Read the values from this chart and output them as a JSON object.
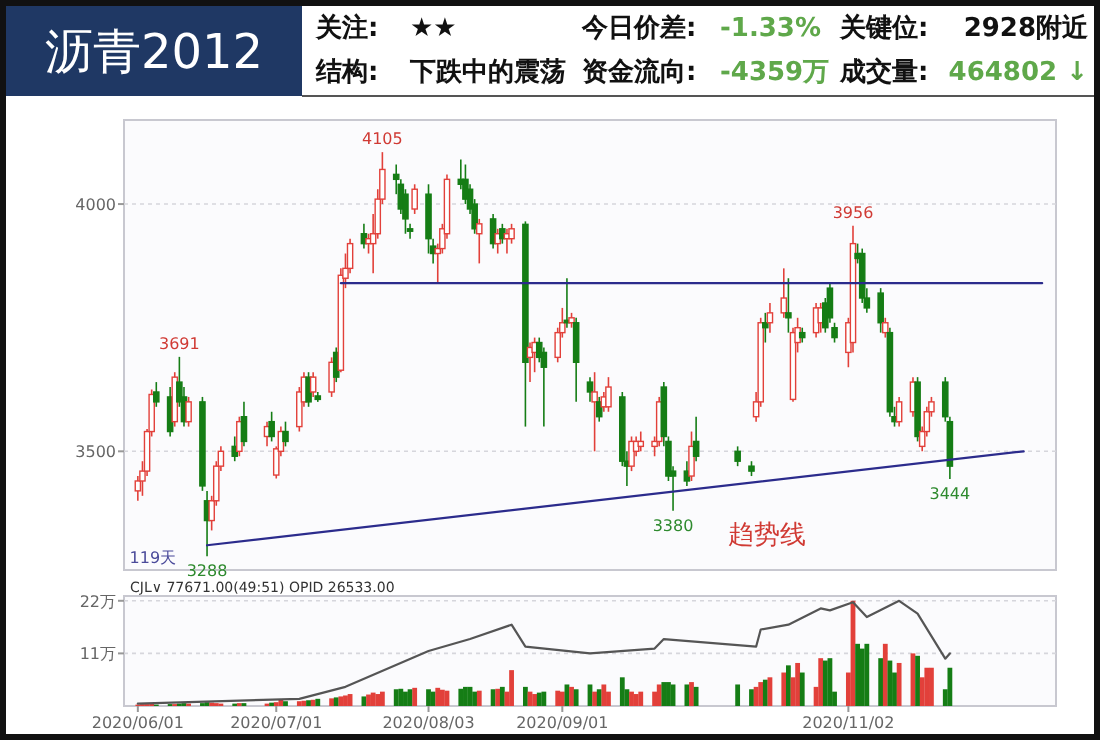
{
  "chart_data": [
    {
      "type": "other",
      "title": "沥青2012",
      "annotations": [
        "关注:",
        "★★",
        "今日价差:",
        "-1.33%",
        "关键位:",
        "2928附近",
        "结构:",
        "下跌中的震荡",
        "资金流向:",
        "-4359万",
        "成交量:",
        "464802 ↓"
      ]
    },
    {
      "type": "candlestick",
      "x": [
        "2020-06-01",
        "2020-06-02",
        "2020-06-03",
        "2020-06-04",
        "2020-06-05",
        "2020-06-08",
        "2020-06-09",
        "2020-06-10",
        "2020-06-11",
        "2020-06-12",
        "2020-06-15",
        "2020-06-16",
        "2020-06-17",
        "2020-06-18",
        "2020-06-19",
        "2020-06-22",
        "2020-06-23",
        "2020-06-24",
        "2020-06-29",
        "2020-06-30",
        "2020-07-01",
        "2020-07-02",
        "2020-07-03",
        "2020-07-06",
        "2020-07-07",
        "2020-07-08",
        "2020-07-09",
        "2020-07-10",
        "2020-07-13",
        "2020-07-14",
        "2020-07-15",
        "2020-07-16",
        "2020-07-17",
        "2020-07-20",
        "2020-07-21",
        "2020-07-22",
        "2020-07-23",
        "2020-07-24",
        "2020-07-27",
        "2020-07-28",
        "2020-07-29",
        "2020-07-30",
        "2020-07-31",
        "2020-08-03",
        "2020-08-04",
        "2020-08-05",
        "2020-08-06",
        "2020-08-07",
        "2020-08-10",
        "2020-08-11",
        "2020-08-12",
        "2020-08-13",
        "2020-08-14",
        "2020-08-17",
        "2020-08-18",
        "2020-08-19",
        "2020-08-20",
        "2020-08-21",
        "2020-08-24",
        "2020-08-25",
        "2020-08-26",
        "2020-08-27",
        "2020-08-28",
        "2020-08-31",
        "2020-09-01",
        "2020-09-02",
        "2020-09-03",
        "2020-09-04",
        "2020-09-07",
        "2020-09-08",
        "2020-09-09",
        "2020-09-10",
        "2020-09-11",
        "2020-09-14",
        "2020-09-15",
        "2020-09-16",
        "2020-09-17",
        "2020-09-18",
        "2020-09-21",
        "2020-09-22",
        "2020-09-23",
        "2020-09-24",
        "2020-09-25",
        "2020-09-28",
        "2020-09-29",
        "2020-09-30",
        "2020-10-09",
        "2020-10-12",
        "2020-10-13",
        "2020-10-14",
        "2020-10-15",
        "2020-10-16",
        "2020-10-19",
        "2020-10-20",
        "2020-10-21",
        "2020-10-22",
        "2020-10-23",
        "2020-10-26",
        "2020-10-27",
        "2020-10-28",
        "2020-10-29",
        "2020-10-30",
        "2020-11-02",
        "2020-11-03",
        "2020-11-04",
        "2020-11-05",
        "2020-11-06",
        "2020-11-09",
        "2020-11-10",
        "2020-11-11",
        "2020-11-12",
        "2020-11-13",
        "2020-11-16",
        "2020-11-17",
        "2020-11-18",
        "2020-11-19",
        "2020-11-20",
        "2020-11-23",
        "2020-11-24"
      ],
      "ohlc": [
        [
          3420,
          3450,
          3400,
          3440
        ],
        [
          3440,
          3480,
          3410,
          3460
        ],
        [
          3460,
          3545,
          3450,
          3540
        ],
        [
          3540,
          3625,
          3530,
          3615
        ],
        [
          3620,
          3640,
          3590,
          3600
        ],
        [
          3610,
          3630,
          3530,
          3540
        ],
        [
          3560,
          3660,
          3550,
          3650
        ],
        [
          3640,
          3691,
          3590,
          3600
        ],
        [
          3610,
          3630,
          3550,
          3560
        ],
        [
          3560,
          3610,
          3550,
          3600
        ],
        [
          3600,
          3610,
          3420,
          3430
        ],
        [
          3400,
          3420,
          3288,
          3360
        ],
        [
          3360,
          3410,
          3340,
          3400
        ],
        [
          3400,
          3480,
          3390,
          3470
        ],
        [
          3470,
          3510,
          3460,
          3500
        ],
        [
          3510,
          3530,
          3480,
          3490
        ],
        [
          3500,
          3570,
          3490,
          3560
        ],
        [
          3570,
          3600,
          3510,
          3520
        ],
        [
          3530,
          3560,
          3510,
          3550
        ],
        [
          3560,
          3580,
          3520,
          3530
        ],
        [
          3452,
          3510,
          3445,
          3505
        ],
        [
          3500,
          3550,
          3490,
          3540
        ],
        [
          3540,
          3560,
          3510,
          3520
        ],
        [
          3550,
          3630,
          3540,
          3620
        ],
        [
          3600,
          3660,
          3590,
          3650
        ],
        [
          3650,
          3660,
          3590,
          3600
        ],
        [
          3620,
          3660,
          3610,
          3650
        ],
        [
          3612,
          3620,
          3600,
          3605
        ],
        [
          3620,
          3690,
          3610,
          3680
        ],
        [
          3700,
          3710,
          3640,
          3650
        ],
        [
          3664,
          3870,
          3660,
          3856
        ],
        [
          3850,
          3900,
          3830,
          3870
        ],
        [
          3870,
          3930,
          3860,
          3920
        ],
        [
          3940,
          3960,
          3910,
          3920
        ],
        [
          3920,
          3940,
          3900,
          3930
        ],
        [
          3920,
          3980,
          3860,
          3940
        ],
        [
          3940,
          4030,
          3930,
          4010
        ],
        [
          4010,
          4105,
          4000,
          4070
        ],
        [
          4060,
          4080,
          4020,
          4050
        ],
        [
          4040,
          4050,
          3980,
          3990
        ],
        [
          4020,
          4030,
          3940,
          3970
        ],
        [
          3950,
          3960,
          3930,
          3945
        ],
        [
          3990,
          4040,
          3980,
          4030
        ],
        [
          4020,
          4040,
          3900,
          3930
        ],
        [
          3915,
          3930,
          3880,
          3900
        ],
        [
          3900,
          3920,
          3840,
          3910
        ],
        [
          3910,
          3960,
          3900,
          3950
        ],
        [
          3940,
          4060,
          3930,
          4050
        ],
        [
          4050,
          4090,
          4030,
          4040
        ],
        [
          4050,
          4080,
          4000,
          4010
        ],
        [
          4030,
          4040,
          3980,
          3990
        ],
        [
          4000,
          4010,
          3940,
          3950
        ],
        [
          3940,
          3970,
          3880,
          3960
        ],
        [
          3970,
          3980,
          3910,
          3920
        ],
        [
          3920,
          3950,
          3900,
          3940
        ],
        [
          3950,
          3960,
          3920,
          3930
        ],
        [
          3930,
          3950,
          3900,
          3940
        ],
        [
          3930,
          3960,
          3920,
          3950
        ],
        [
          3959,
          3965,
          3550,
          3680
        ],
        [
          3690,
          3720,
          3640,
          3710
        ],
        [
          3700,
          3730,
          3660,
          3720
        ],
        [
          3720,
          3730,
          3680,
          3690
        ],
        [
          3700,
          3710,
          3550,
          3670
        ],
        [
          3690,
          3750,
          3680,
          3740
        ],
        [
          3740,
          3790,
          3730,
          3760
        ],
        [
          3765,
          3850,
          3750,
          3760
        ],
        [
          3760,
          3780,
          3750,
          3770
        ],
        [
          3760,
          3770,
          3600,
          3680
        ],
        [
          3640,
          3650,
          3600,
          3620
        ],
        [
          3600,
          3660,
          3500,
          3620
        ],
        [
          3600,
          3610,
          3560,
          3570
        ],
        [
          3590,
          3620,
          3580,
          3610
        ],
        [
          3590,
          3650,
          3580,
          3630
        ],
        [
          3610,
          3620,
          3470,
          3480
        ],
        [
          3480,
          3500,
          3430,
          3470
        ],
        [
          3470,
          3530,
          3460,
          3520
        ],
        [
          3500,
          3530,
          3490,
          3520
        ],
        [
          3510,
          3540,
          3500,
          3520
        ],
        [
          3510,
          3530,
          3490,
          3520
        ],
        [
          3520,
          3610,
          3510,
          3600
        ],
        [
          3630,
          3640,
          3510,
          3530
        ],
        [
          3520,
          3530,
          3440,
          3450
        ],
        [
          3460,
          3470,
          3380,
          3450
        ],
        [
          3460,
          3480,
          3430,
          3440
        ],
        [
          3450,
          3540,
          3440,
          3510
        ],
        [
          3520,
          3570,
          3480,
          3490
        ],
        [
          3500,
          3510,
          3470,
          3480
        ],
        [
          3470,
          3480,
          3450,
          3460
        ],
        [
          3570,
          3620,
          3560,
          3600
        ],
        [
          3600,
          3770,
          3590,
          3760
        ],
        [
          3760,
          3780,
          3720,
          3750
        ],
        [
          3760,
          3800,
          3740,
          3780
        ],
        [
          3780,
          3870,
          3770,
          3810
        ],
        [
          3780,
          3850,
          3740,
          3770
        ],
        [
          3605,
          3750,
          3600,
          3740
        ],
        [
          3720,
          3770,
          3700,
          3750
        ],
        [
          3740,
          3750,
          3720,
          3730
        ],
        [
          3740,
          3800,
          3730,
          3790
        ],
        [
          3760,
          3800,
          3740,
          3790
        ],
        [
          3800,
          3810,
          3740,
          3750
        ],
        [
          3830,
          3840,
          3760,
          3770
        ],
        [
          3750,
          3760,
          3720,
          3730
        ],
        [
          3700,
          3770,
          3670,
          3760
        ],
        [
          3720,
          3956,
          3700,
          3920
        ],
        [
          3900,
          3920,
          3880,
          3890
        ],
        [
          3900,
          3910,
          3800,
          3810
        ],
        [
          3810,
          3830,
          3780,
          3790
        ],
        [
          3820,
          3830,
          3740,
          3760
        ],
        [
          3740,
          3770,
          3730,
          3760
        ],
        [
          3740,
          3750,
          3570,
          3580
        ],
        [
          3570,
          3590,
          3550,
          3560
        ],
        [
          3560,
          3610,
          3550,
          3600
        ],
        [
          3580,
          3650,
          3570,
          3640
        ],
        [
          3640,
          3650,
          3520,
          3530
        ],
        [
          3510,
          3550,
          3500,
          3540
        ],
        [
          3540,
          3590,
          3530,
          3580
        ],
        [
          3580,
          3610,
          3570,
          3600
        ],
        [
          3640,
          3650,
          3560,
          3570
        ],
        [
          3560,
          3570,
          3444,
          3470
        ]
      ],
      "colors": [
        "#e2403a",
        "#e2403a",
        "#e2403a",
        "#e2403a",
        "#157d15",
        "#157d15",
        "#e2403a",
        "#157d15",
        "#157d15",
        "#e2403a",
        "#157d15",
        "#157d15",
        "#e2403a",
        "#e2403a",
        "#e2403a",
        "#157d15",
        "#e2403a",
        "#157d15",
        "#e2403a",
        "#157d15",
        "#e2403a",
        "#e2403a",
        "#157d15",
        "#e2403a",
        "#e2403a",
        "#157d15",
        "#e2403a",
        "#157d15",
        "#e2403a",
        "#157d15",
        "#e2403a",
        "#e2403a",
        "#e2403a",
        "#157d15",
        "#e2403a",
        "#e2403a",
        "#e2403a",
        "#e2403a",
        "#157d15",
        "#157d15",
        "#157d15",
        "#157d15",
        "#e2403a",
        "#157d15",
        "#157d15",
        "#e2403a",
        "#e2403a",
        "#e2403a",
        "#157d15",
        "#157d15",
        "#157d15",
        "#157d15",
        "#e2403a",
        "#157d15",
        "#e2403a",
        "#157d15",
        "#e2403a",
        "#e2403a",
        "#157d15",
        "#e2403a",
        "#e2403a",
        "#157d15",
        "#157d15",
        "#e2403a",
        "#e2403a",
        "#157d15",
        "#e2403a",
        "#157d15",
        "#157d15",
        "#e2403a",
        "#157d15",
        "#e2403a",
        "#e2403a",
        "#157d15",
        "#157d15",
        "#e2403a",
        "#e2403a",
        "#e2403a",
        "#e2403a",
        "#e2403a",
        "#157d15",
        "#157d15",
        "#157d15",
        "#157d15",
        "#e2403a",
        "#157d15",
        "#157d15",
        "#157d15",
        "#e2403a",
        "#e2403a",
        "#157d15",
        "#e2403a",
        "#e2403a",
        "#157d15",
        "#e2403a",
        "#e2403a",
        "#157d15",
        "#e2403a",
        "#e2403a",
        "#157d15",
        "#157d15",
        "#157d15",
        "#e2403a",
        "#e2403a",
        "#157d15",
        "#157d15",
        "#157d15",
        "#157d15",
        "#e2403a",
        "#157d15",
        "#157d15",
        "#e2403a",
        "#e2403a",
        "#157d15",
        "#e2403a",
        "#e2403a",
        "#e2403a",
        "#157d15",
        "#157d15"
      ],
      "series": [
        {
          "type": "line",
          "x": [
            "2020-07-15",
            "2020-12-14"
          ],
          "values": [
            3840,
            3840
          ],
          "color": "#2b2b8c"
        },
        {
          "type": "line",
          "x": [
            "2020-06-16",
            "2020-12-10"
          ],
          "values": [
            3310,
            3500
          ],
          "color": "#2b2b8c"
        }
      ],
      "annotations": [
        {
          "text": "3691",
          "x": "2020-06-10",
          "y": 3691
        },
        {
          "text": "3288",
          "x": "2020-06-16",
          "y": 3288
        },
        {
          "text": "4105",
          "x": "2020-07-24",
          "y": 4105
        },
        {
          "text": "3380",
          "x": "2020-09-25",
          "y": 3380
        },
        {
          "text": "3956",
          "x": "2020-11-03",
          "y": 3956
        },
        {
          "text": "3444",
          "x": "2020-11-24",
          "y": 3444
        },
        "趋势线",
        "119天"
      ],
      "xlim": [
        "2020-05-29",
        "2020-12-17"
      ],
      "ylim": [
        3260,
        4170
      ],
      "yticks": [
        3500,
        4000
      ],
      "grid": "y",
      "tick_labels": "y"
    },
    {
      "type": "bar",
      "x": [
        "2020-06-01",
        "2020-06-02",
        "2020-06-03",
        "2020-06-04",
        "2020-06-05",
        "2020-06-08",
        "2020-06-09",
        "2020-06-10",
        "2020-06-11",
        "2020-06-12",
        "2020-06-15",
        "2020-06-16",
        "2020-06-17",
        "2020-06-18",
        "2020-06-19",
        "2020-06-22",
        "2020-06-23",
        "2020-06-24",
        "2020-06-29",
        "2020-06-30",
        "2020-07-01",
        "2020-07-02",
        "2020-07-03",
        "2020-07-06",
        "2020-07-07",
        "2020-07-08",
        "2020-07-09",
        "2020-07-10",
        "2020-07-13",
        "2020-07-14",
        "2020-07-15",
        "2020-07-16",
        "2020-07-17",
        "2020-07-20",
        "2020-07-21",
        "2020-07-22",
        "2020-07-23",
        "2020-07-24",
        "2020-07-27",
        "2020-07-28",
        "2020-07-29",
        "2020-07-30",
        "2020-07-31",
        "2020-08-03",
        "2020-08-04",
        "2020-08-05",
        "2020-08-06",
        "2020-08-07",
        "2020-08-10",
        "2020-08-11",
        "2020-08-12",
        "2020-08-13",
        "2020-08-14",
        "2020-08-17",
        "2020-08-18",
        "2020-08-19",
        "2020-08-20",
        "2020-08-21",
        "2020-08-24",
        "2020-08-25",
        "2020-08-26",
        "2020-08-27",
        "2020-08-28",
        "2020-08-31",
        "2020-09-01",
        "2020-09-02",
        "2020-09-03",
        "2020-09-04",
        "2020-09-07",
        "2020-09-08",
        "2020-09-09",
        "2020-09-10",
        "2020-09-11",
        "2020-09-14",
        "2020-09-15",
        "2020-09-16",
        "2020-09-17",
        "2020-09-18",
        "2020-09-21",
        "2020-09-22",
        "2020-09-23",
        "2020-09-24",
        "2020-09-25",
        "2020-09-28",
        "2020-09-29",
        "2020-09-30",
        "2020-10-09",
        "2020-10-12",
        "2020-10-13",
        "2020-10-14",
        "2020-10-15",
        "2020-10-16",
        "2020-10-19",
        "2020-10-20",
        "2020-10-21",
        "2020-10-22",
        "2020-10-23",
        "2020-10-26",
        "2020-10-27",
        "2020-10-28",
        "2020-10-29",
        "2020-10-30",
        "2020-11-02",
        "2020-11-03",
        "2020-11-04",
        "2020-11-05",
        "2020-11-06",
        "2020-11-09",
        "2020-11-10",
        "2020-11-11",
        "2020-11-12",
        "2020-11-13",
        "2020-11-16",
        "2020-11-17",
        "2020-11-18",
        "2020-11-19",
        "2020-11-20",
        "2020-11-23",
        "2020-11-24"
      ],
      "series": [
        {
          "type": "bar",
          "values": [
            0.3,
            0.4,
            0.4,
            0.5,
            0.3,
            0.4,
            0.4,
            0.5,
            0.6,
            0.5,
            0.6,
            0.8,
            0.7,
            0.6,
            0.5,
            0.5,
            0.6,
            0.6,
            0.5,
            0.7,
            0.8,
            1.4,
            1.0,
            1.0,
            1.1,
            1.2,
            1.3,
            1.5,
            1.6,
            1.8,
            2.0,
            2.2,
            2.5,
            2.0,
            2.4,
            2.8,
            2.5,
            3.0,
            3.5,
            3.6,
            3.0,
            3.5,
            3.8,
            3.5,
            3.0,
            3.8,
            3.4,
            3.2,
            3.6,
            4.0,
            4.0,
            3.0,
            3.2,
            3.5,
            3.6,
            4.0,
            3.0,
            7.5,
            4.0,
            3.0,
            2.5,
            2.8,
            3.0,
            3.2,
            3.0,
            4.5,
            4.0,
            3.5,
            4.5,
            3.0,
            3.5,
            4.5,
            3.0,
            6.0,
            3.5,
            3.0,
            2.5,
            3.0,
            3.0,
            4.5,
            5.0,
            5.0,
            4.5,
            4.5,
            5.0,
            4.0,
            4.5,
            3.5,
            4.0,
            5.0,
            5.5,
            6.0,
            7.0,
            8.5,
            6.0,
            9.0,
            7.0,
            4.0,
            10.0,
            9.5,
            10.0,
            3.0,
            7.0,
            22.0,
            13.0,
            12.0,
            13.0,
            10.0,
            13.0,
            9.5,
            7.0,
            9.0,
            11.0,
            10.5,
            6.0,
            8.0,
            8.0,
            3.5,
            8.0
          ],
          "colors": [
            "#e2403a",
            "#e2403a",
            "#e2403a",
            "#e2403a",
            "#157d15",
            "#157d15",
            "#e2403a",
            "#157d15",
            "#157d15",
            "#e2403a",
            "#157d15",
            "#157d15",
            "#e2403a",
            "#e2403a",
            "#e2403a",
            "#157d15",
            "#e2403a",
            "#157d15",
            "#e2403a",
            "#157d15",
            "#e2403a",
            "#e2403a",
            "#157d15",
            "#e2403a",
            "#e2403a",
            "#157d15",
            "#e2403a",
            "#157d15",
            "#e2403a",
            "#157d15",
            "#e2403a",
            "#e2403a",
            "#e2403a",
            "#157d15",
            "#e2403a",
            "#e2403a",
            "#e2403a",
            "#e2403a",
            "#157d15",
            "#157d15",
            "#157d15",
            "#157d15",
            "#e2403a",
            "#157d15",
            "#157d15",
            "#e2403a",
            "#e2403a",
            "#e2403a",
            "#157d15",
            "#157d15",
            "#157d15",
            "#157d15",
            "#e2403a",
            "#157d15",
            "#e2403a",
            "#157d15",
            "#e2403a",
            "#e2403a",
            "#157d15",
            "#e2403a",
            "#e2403a",
            "#157d15",
            "#157d15",
            "#e2403a",
            "#e2403a",
            "#157d15",
            "#e2403a",
            "#157d15",
            "#157d15",
            "#e2403a",
            "#157d15",
            "#e2403a",
            "#e2403a",
            "#157d15",
            "#157d15",
            "#e2403a",
            "#e2403a",
            "#e2403a",
            "#e2403a",
            "#e2403a",
            "#157d15",
            "#157d15",
            "#157d15",
            "#157d15",
            "#e2403a",
            "#157d15",
            "#157d15",
            "#157d15",
            "#e2403a",
            "#e2403a",
            "#157d15",
            "#e2403a",
            "#e2403a",
            "#157d15",
            "#e2403a",
            "#e2403a",
            "#157d15",
            "#e2403a",
            "#e2403a",
            "#157d15",
            "#157d15",
            "#157d15",
            "#e2403a",
            "#e2403a",
            "#157d15",
            "#157d15",
            "#157d15",
            "#157d15",
            "#e2403a",
            "#157d15",
            "#157d15",
            "#e2403a",
            "#e2403a",
            "#157d15",
            "#e2403a",
            "#e2403a",
            "#e2403a",
            "#157d15",
            "#157d15"
          ]
        },
        {
          "type": "line",
          "x": [
            "2020-06-01",
            "2020-07-06",
            "2020-07-16",
            "2020-08-03",
            "2020-08-12",
            "2020-08-21",
            "2020-08-24",
            "2020-09-07",
            "2020-09-21",
            "2020-09-23",
            "2020-10-13",
            "2020-10-14",
            "2020-10-20",
            "2020-10-27",
            "2020-10-29",
            "2020-11-03",
            "2020-11-06",
            "2020-11-13",
            "2020-11-17",
            "2020-11-23",
            "2020-11-24"
          ],
          "values": [
            0.5,
            1.5,
            4,
            11.5,
            14,
            17,
            12.4,
            11,
            12,
            14,
            12.4,
            16,
            17,
            20.4,
            20,
            21.7,
            18.6,
            22,
            19.3,
            9.9,
            11
          ],
          "color": "#555555"
        }
      ],
      "annotations": [
        "CJL∨ 77671.00(49:51) OPID 26533.00"
      ],
      "xlim": [
        "2020-05-29",
        "2020-12-17"
      ],
      "ylim": [
        0,
        23
      ],
      "xticks": [
        {
          "value": "2020-06-01",
          "label": "2020/06/01"
        },
        {
          "value": "2020-07-01",
          "label": "2020/07/01"
        },
        {
          "value": "2020-08-03",
          "label": "2020/08/03"
        },
        {
          "value": "2020-09-01",
          "label": "2020/09/01"
        },
        {
          "value": "2020-11-02",
          "label": "2020/11/02"
        }
      ],
      "yticks": [
        {
          "value": 11,
          "label": "11万"
        },
        {
          "value": 22,
          "label": "22万"
        }
      ],
      "grid": "y"
    }
  ]
}
